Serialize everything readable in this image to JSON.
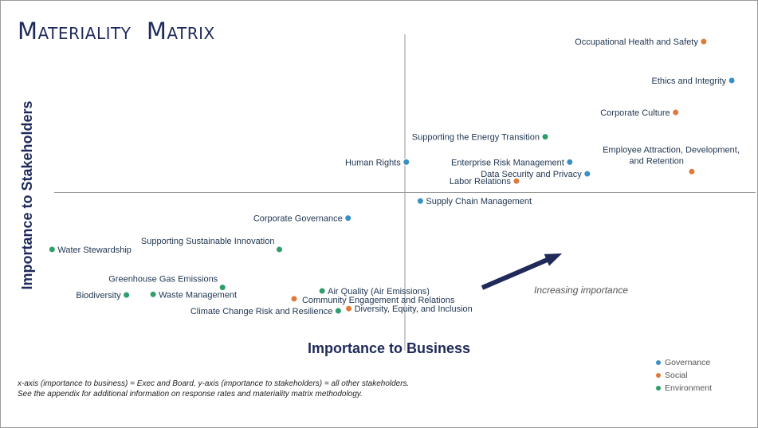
{
  "title": "Materiality  Matrix",
  "colors": {
    "Governance": "#3a8fc4",
    "Social": "#e07a3a",
    "Environment": "#2e9e6b",
    "axis": "#9a9a9a",
    "arrow": "#1f2a5a",
    "text": "#1f3550"
  },
  "footnote": {
    "line1": "x-axis (importance to business) = Exec and Board, y-axis (importance to stakeholders) = all other stakeholders.",
    "line2": "See the appendix for additional information on response rates and materiality matrix methodology."
  },
  "chart_data": {
    "type": "scatter",
    "title": "Materiality  Matrix",
    "xlabel": "Importance to Business",
    "ylabel": "Importance to Stakeholders",
    "xlim": [
      0,
      100
    ],
    "ylim": [
      0,
      100
    ],
    "quadrant_lines": {
      "x": 50,
      "y": 50
    },
    "grid": false,
    "legend_position": "bottom-right",
    "annotation": "Increasing importance",
    "series": [
      {
        "name": "Governance"
      },
      {
        "name": "Social"
      },
      {
        "name": "Environment"
      }
    ],
    "points": [
      {
        "label": "Occupational Health and Safety",
        "x": 92.6,
        "y": 97.7,
        "category": "Social"
      },
      {
        "label": "Ethics and Integrity",
        "x": 96.6,
        "y": 85.4,
        "category": "Governance"
      },
      {
        "label": "Corporate Culture",
        "x": 88.6,
        "y": 75.3,
        "category": "Social"
      },
      {
        "label": "Supporting the Energy Transition",
        "x": 70.0,
        "y": 67.6,
        "category": "Environment"
      },
      {
        "label": "Human Rights",
        "x": 50.2,
        "y": 59.6,
        "category": "Governance"
      },
      {
        "label": "Enterprise Risk Management",
        "x": 73.5,
        "y": 59.6,
        "category": "Governance"
      },
      {
        "label": "Employee Attraction, Development, and Retention",
        "x": 90.9,
        "y": 56.6,
        "category": "Social"
      },
      {
        "label": "Data Security and Privacy",
        "x": 76.0,
        "y": 55.9,
        "category": "Governance"
      },
      {
        "label": "Labor Relations",
        "x": 65.9,
        "y": 53.6,
        "category": "Social"
      },
      {
        "label": "Supply Chain Management",
        "x": 52.2,
        "y": 47.3,
        "category": "Governance"
      },
      {
        "label": "Corporate Governance",
        "x": 41.9,
        "y": 41.9,
        "category": "Governance"
      },
      {
        "label": "Supporting Sustainable Innovation",
        "x": 32.1,
        "y": 32.0,
        "category": "Environment"
      },
      {
        "label": "Water Stewardship",
        "x": -0.3,
        "y": 32.0,
        "category": "Environment"
      },
      {
        "label": "Greenhouse Gas Emissions",
        "x": 24.0,
        "y": 20.0,
        "category": "Environment"
      },
      {
        "label": "Biodiversity",
        "x": 10.3,
        "y": 17.6,
        "category": "Environment"
      },
      {
        "label": "Waste Management",
        "x": 14.1,
        "y": 17.8,
        "category": "Environment"
      },
      {
        "label": "Air Quality (Air Emissions)",
        "x": 38.2,
        "y": 18.9,
        "category": "Environment"
      },
      {
        "label": "Community Engagement and Relations",
        "x": 34.2,
        "y": 16.4,
        "category": "Social"
      },
      {
        "label": "Diversity, Equity, and Inclusion",
        "x": 42.0,
        "y": 13.3,
        "category": "Social"
      },
      {
        "label": "Climate Change Risk and Resilience",
        "x": 40.5,
        "y": 12.6,
        "category": "Environment"
      }
    ]
  }
}
